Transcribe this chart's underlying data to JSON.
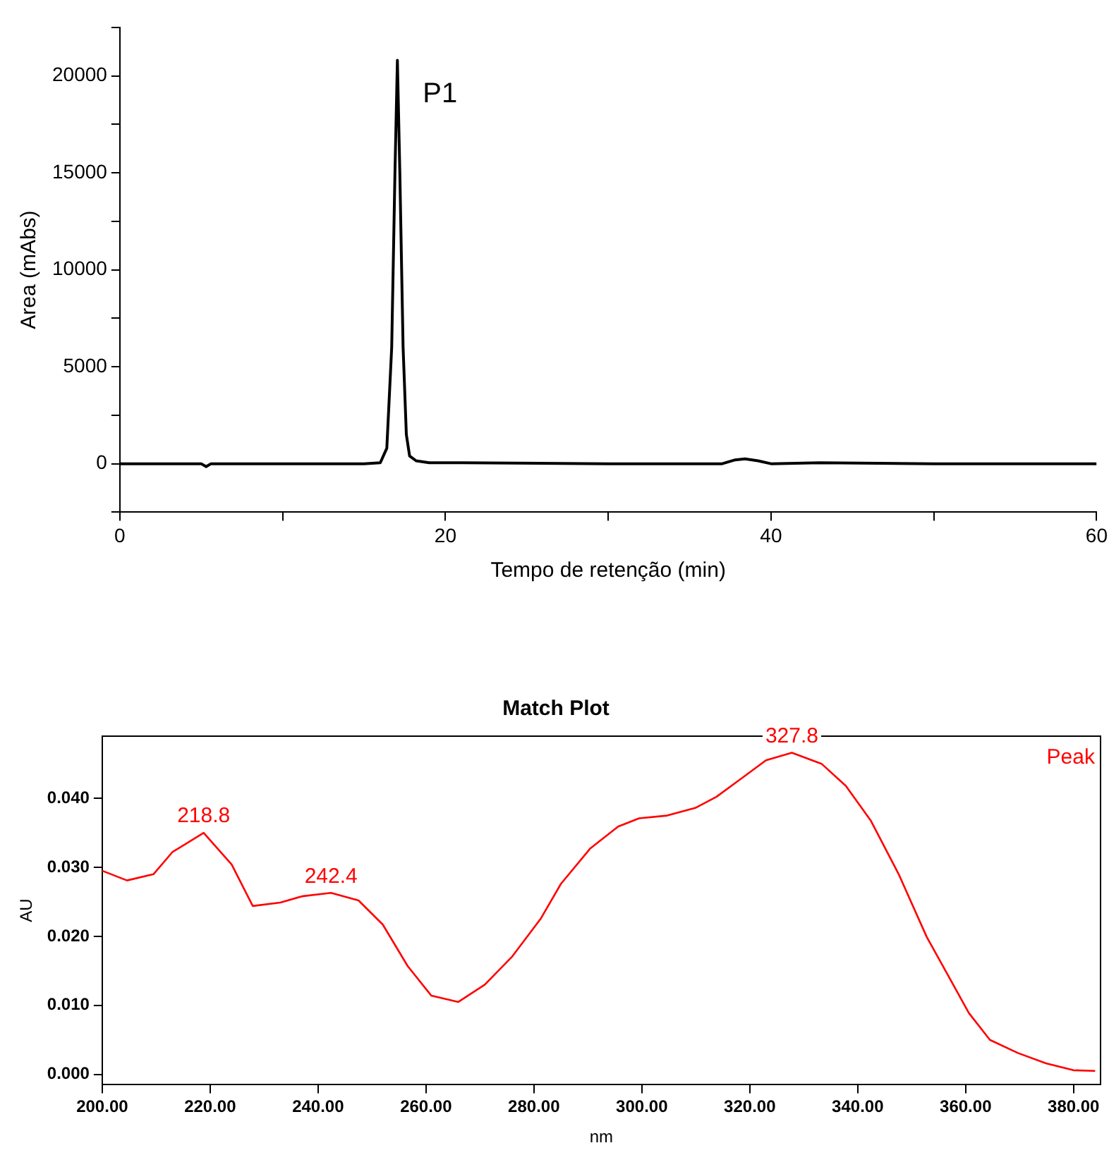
{
  "chart_data": [
    {
      "type": "line",
      "xlabel": "Tempo de retenção (min)",
      "ylabel": "Area (mAbs)",
      "marker": "none",
      "line_style": "solid",
      "series": [
        {
          "color": "#000000",
          "x": [
            0,
            5,
            5.3,
            5.6,
            10,
            15,
            16,
            16.4,
            16.7,
            16.9,
            17.05,
            17.2,
            17.4,
            17.6,
            17.8,
            18.2,
            19,
            21,
            30,
            37,
            37.8,
            38.4,
            39.2,
            40,
            43,
            50,
            60
          ],
          "values": [
            0,
            0,
            -150,
            0,
            0,
            0,
            50,
            800,
            6000,
            15000,
            20800,
            15000,
            6000,
            1500,
            400,
            150,
            50,
            50,
            0,
            0,
            200,
            250,
            150,
            0,
            50,
            0,
            0
          ]
        }
      ],
      "xlim": [
        0,
        60
      ],
      "xticks": [
        0,
        {
          "value": 10,
          "label": null
        },
        20,
        {
          "value": 30,
          "label": null
        },
        40,
        {
          "value": 50,
          "label": null
        },
        60
      ],
      "ylim": [
        -2500,
        22500
      ],
      "yticks": [
        {
          "value": -2500,
          "label": null
        },
        0,
        {
          "value": 2500,
          "label": null
        },
        5000,
        {
          "value": 7500,
          "label": null
        },
        10000,
        {
          "value": 12500,
          "label": null
        },
        15000,
        {
          "value": 17500,
          "label": null
        },
        20000,
        {
          "value": 22500,
          "label": null
        }
      ],
      "annotations": [
        {
          "text": "P1",
          "x": 17.05,
          "y": 20800
        }
      ]
    },
    {
      "type": "line",
      "title": "Match Plot",
      "xlabel": "nm",
      "ylabel": "AU",
      "marker": "none",
      "line_style": "solid",
      "series": [
        {
          "color": "#ff0000",
          "x": [
            200,
            204.6,
            209.5,
            213,
            218.8,
            224,
            227.9,
            233,
            237,
            242.4,
            247.5,
            252,
            256.6,
            261,
            266,
            270.9,
            276,
            281.3,
            285,
            290.4,
            295.6,
            299.5,
            304.7,
            309.9,
            313.8,
            318.5,
            323,
            327.8,
            333.3,
            337.8,
            342.4,
            347.6,
            352.8,
            356.7,
            360.6,
            364.5,
            369.7,
            374.9,
            380,
            384
          ],
          "values": [
            0.0295,
            0.0281,
            0.029,
            0.0322,
            0.035,
            0.0304,
            0.0244,
            0.0249,
            0.0258,
            0.0263,
            0.0252,
            0.0217,
            0.0157,
            0.0114,
            0.0105,
            0.013,
            0.0171,
            0.0226,
            0.0276,
            0.0327,
            0.0359,
            0.0371,
            0.0375,
            0.0386,
            0.0402,
            0.0429,
            0.0455,
            0.0466,
            0.045,
            0.0418,
            0.0368,
            0.029,
            0.0199,
            0.0144,
            0.0089,
            0.005,
            0.0031,
            0.0016,
            0.0006,
            0.0005
          ]
        }
      ],
      "xlim": [
        200,
        385
      ],
      "xticks": [
        {
          "value": 200,
          "label": "200.00"
        },
        {
          "value": 220,
          "label": "220.00"
        },
        {
          "value": 240,
          "label": "240.00"
        },
        {
          "value": 260,
          "label": "260.00"
        },
        {
          "value": 280,
          "label": "280.00"
        },
        {
          "value": 300,
          "label": "300.00"
        },
        {
          "value": 320,
          "label": "320.00"
        },
        {
          "value": 340,
          "label": "340.00"
        },
        {
          "value": 360,
          "label": "360.00"
        },
        {
          "value": 380,
          "label": "380.00"
        }
      ],
      "ylim": [
        -0.0015,
        0.049
      ],
      "yticks": [
        {
          "value": 0,
          "label": "0.000"
        },
        {
          "value": 0.01,
          "label": "0.010"
        },
        {
          "value": 0.02,
          "label": "0.020"
        },
        {
          "value": 0.03,
          "label": "0.030"
        },
        {
          "value": 0.04,
          "label": "0.040"
        }
      ],
      "annotations": [
        {
          "text": "218.8",
          "x": 218.8,
          "y": 0.035
        },
        {
          "text": "242.4",
          "x": 242.4,
          "y": 0.0263
        },
        {
          "text": "327.8",
          "x": 327.8,
          "y": 0.0466
        },
        "Peak"
      ]
    }
  ]
}
